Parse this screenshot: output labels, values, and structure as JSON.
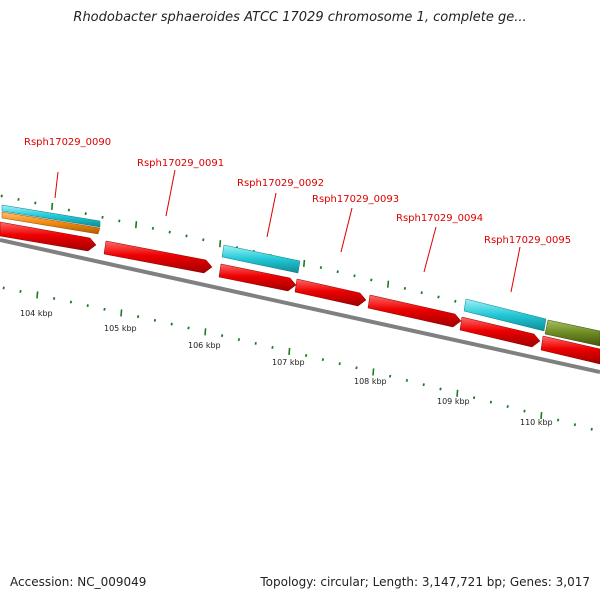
{
  "title": "Rhodobacter sphaeroides ATCC 17029 chromosome 1, complete ge...",
  "footer": {
    "accession": "Accession: NC_009049",
    "topology": "Topology: circular; Length: 3,147,721 bp; Genes: 3,017"
  },
  "colors": {
    "cds": "#ee0000",
    "trna_rrna": "#22c8d6",
    "orange": "#f08a10",
    "olive": "#6d8a22",
    "label": "#dd0000",
    "tick": "#1e7a1e",
    "backbone": "#808080"
  },
  "scale": {
    "labels": [
      "104 kbp",
      "105 kbp",
      "106 kbp",
      "107 kbp",
      "108 kbp",
      "109 kbp",
      "110 kbp"
    ]
  },
  "gene_labels": [
    "Rsph17029_0090",
    "Rsph17029_0091",
    "Rsph17029_0092",
    "Rsph17029_0093",
    "Rsph17029_0094",
    "Rsph17029_0095"
  ]
}
